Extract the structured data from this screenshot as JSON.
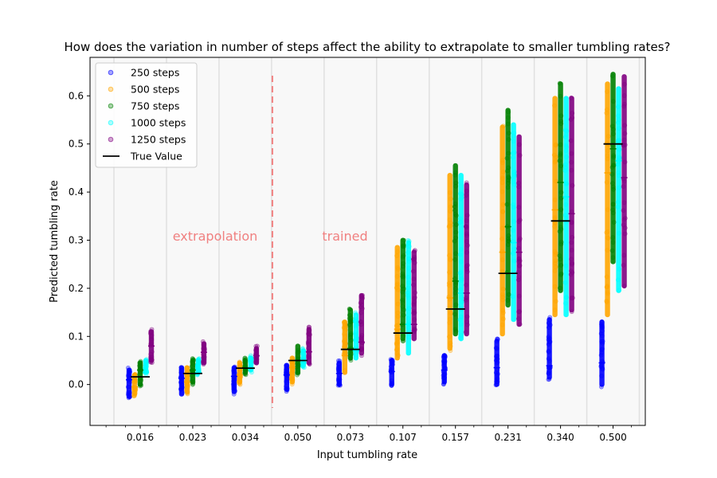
{
  "chart_data": {
    "type": "scatter",
    "title": "How does the variation in number of steps affect the ability to extrapolate to smaller tumbling rates?",
    "xlabel": "Input tumbling rate",
    "ylabel": "Predicted tumbling rate",
    "categories": [
      "0.016",
      "0.023",
      "0.034",
      "0.050",
      "0.073",
      "0.107",
      "0.157",
      "0.231",
      "0.340",
      "0.500"
    ],
    "ylim": [
      -0.085,
      0.68
    ],
    "yticks": [
      0.0,
      0.1,
      0.2,
      0.3,
      0.4,
      0.5,
      0.6
    ],
    "ytick_labels": [
      "0.0",
      "0.1",
      "0.2",
      "0.3",
      "0.4",
      "0.5",
      "0.6"
    ],
    "grid": "vertical separators between categories",
    "legend_position": "top-left",
    "legend_true_value": "True Value",
    "annotations": [
      {
        "text": "extrapolation",
        "color": "#f08080"
      },
      {
        "text": "trained",
        "color": "#f08080"
      }
    ],
    "divider_after_category_index": 2,
    "divider_color": "#f08080",
    "series": [
      {
        "name": "250 steps",
        "color": "#0000ff",
        "ranges": [
          [
            -0.03,
            0.035
          ],
          [
            -0.025,
            0.04
          ],
          [
            -0.02,
            0.04
          ],
          [
            -0.015,
            0.045
          ],
          [
            -0.005,
            0.05
          ],
          [
            -0.005,
            0.055
          ],
          [
            0.0,
            0.065
          ],
          [
            -0.005,
            0.095
          ],
          [
            0.01,
            0.14
          ],
          [
            -0.005,
            0.135
          ]
        ],
        "true_values": [
          0.01,
          0.013,
          0.017,
          0.02,
          0.023,
          0.027,
          0.03,
          0.035,
          0.039,
          0.045
        ]
      },
      {
        "name": "500 steps",
        "color": "#ffa500",
        "ranges": [
          [
            -0.025,
            0.025
          ],
          [
            -0.02,
            0.04
          ],
          [
            0.0,
            0.05
          ],
          [
            0.0,
            0.06
          ],
          [
            0.02,
            0.135
          ],
          [
            0.05,
            0.29
          ],
          [
            0.07,
            0.44
          ],
          [
            0.1,
            0.54
          ],
          [
            0.14,
            0.6
          ],
          [
            0.14,
            0.63
          ]
        ],
        "true_values": [
          -0.005,
          0.005,
          0.02,
          0.035,
          0.06,
          0.115,
          0.18,
          0.275,
          0.363,
          0.44
        ]
      },
      {
        "name": "750 steps",
        "color": "#008000",
        "ranges": [
          [
            -0.005,
            0.05
          ],
          [
            0.0,
            0.055
          ],
          [
            0.02,
            0.055
          ],
          [
            0.02,
            0.085
          ],
          [
            0.05,
            0.16
          ],
          [
            0.09,
            0.305
          ],
          [
            0.1,
            0.46
          ],
          [
            0.16,
            0.575
          ],
          [
            0.19,
            0.63
          ],
          [
            0.25,
            0.65
          ]
        ],
        "true_values": [
          0.03,
          0.03,
          0.035,
          0.05,
          0.075,
          0.125,
          0.215,
          0.328,
          0.42,
          0.49
        ]
      },
      {
        "name": "1000 steps",
        "color": "#00ffff",
        "ranges": [
          [
            0.02,
            0.055
          ],
          [
            0.02,
            0.055
          ],
          [
            0.025,
            0.06
          ],
          [
            0.035,
            0.075
          ],
          [
            0.05,
            0.15
          ],
          [
            0.06,
            0.3
          ],
          [
            0.09,
            0.44
          ],
          [
            0.13,
            0.545
          ],
          [
            0.14,
            0.6
          ],
          [
            0.19,
            0.62
          ]
        ],
        "true_values": [
          0.025,
          0.025,
          0.035,
          0.045,
          0.07,
          0.125,
          0.19,
          0.295,
          0.39,
          0.465
        ]
      },
      {
        "name": "1250 steps",
        "color": "#800080",
        "ranges": [
          [
            0.045,
            0.115
          ],
          [
            0.04,
            0.09
          ],
          [
            0.04,
            0.08
          ],
          [
            0.04,
            0.12
          ],
          [
            0.06,
            0.19
          ],
          [
            0.09,
            0.28
          ],
          [
            0.1,
            0.42
          ],
          [
            0.12,
            0.52
          ],
          [
            0.15,
            0.6
          ],
          [
            0.2,
            0.645
          ]
        ],
        "true_values": [
          0.08,
          0.067,
          0.06,
          0.068,
          0.088,
          0.125,
          0.19,
          0.275,
          0.355,
          0.43
        ]
      }
    ],
    "true_values_main": [
      0.016,
      0.023,
      0.034,
      0.05,
      0.073,
      0.107,
      0.157,
      0.231,
      0.34,
      0.5
    ]
  }
}
